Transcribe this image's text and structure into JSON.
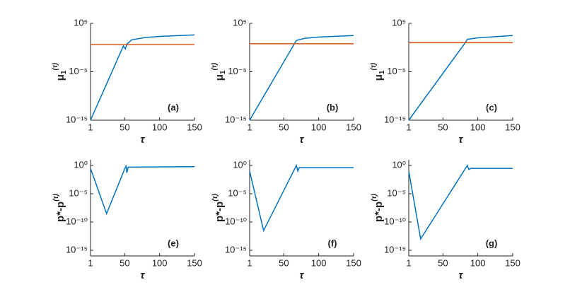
{
  "chart_data": [
    {
      "type": "line",
      "xlim": [
        1,
        150
      ],
      "xticks": [
        1,
        50,
        100,
        150
      ],
      "ylog": true,
      "ylim": [
        1e-15,
        100000.0
      ],
      "yticks": [
        {
          "value": 1e-15,
          "label": "10⁻¹⁵"
        },
        {
          "value": 1e-05,
          "label": "10⁻⁵"
        },
        {
          "value": 100000.0,
          "label": "10⁵"
        }
      ],
      "xlabel": "τ",
      "ylabel": {
        "base": "μ",
        "sub": "1",
        "sup": "(τ)"
      },
      "annotation": "(a)",
      "series": [
        {
          "color": "#0072bd",
          "x": [
            1,
            48,
            51,
            53,
            60,
            80,
            100,
            150
          ],
          "values": [
            1e-15,
            2,
            0.5,
            5,
            40,
            120,
            200,
            400
          ]
        },
        {
          "color": "#d95319",
          "x": [
            1,
            150
          ],
          "values": [
            4,
            4
          ]
        }
      ]
    },
    {
      "type": "line",
      "xlim": [
        1,
        150
      ],
      "xticks": [
        1,
        50,
        100,
        150
      ],
      "ylog": true,
      "ylim": [
        1e-15,
        100000.0
      ],
      "yticks": [
        {
          "value": 1e-15,
          "label": "10⁻¹⁵"
        },
        {
          "value": 1e-05,
          "label": "10⁻⁵"
        },
        {
          "value": 100000.0,
          "label": "10⁵"
        }
      ],
      "xlabel": "τ",
      "ylabel": {
        "base": "μ",
        "sub": "1",
        "sup": "(τ)"
      },
      "annotation": "(b)",
      "series": [
        {
          "color": "#0072bd",
          "x": [
            1,
            68,
            80,
            100,
            150
          ],
          "values": [
            1e-15,
            30,
            80,
            150,
            300
          ]
        },
        {
          "color": "#d95319",
          "x": [
            1,
            150
          ],
          "values": [
            6,
            6
          ]
        }
      ]
    },
    {
      "type": "line",
      "xlim": [
        1,
        150
      ],
      "xticks": [
        1,
        50,
        100,
        150
      ],
      "ylog": true,
      "ylim": [
        1e-15,
        100000.0
      ],
      "yticks": [
        {
          "value": 1e-15,
          "label": "10⁻¹⁵"
        },
        {
          "value": 1e-05,
          "label": "10⁻⁵"
        },
        {
          "value": 100000.0,
          "label": "10⁵"
        }
      ],
      "xlabel": "τ",
      "ylabel": {
        "base": "μ",
        "sub": "1",
        "sup": "(τ)"
      },
      "annotation": "(c)",
      "series": [
        {
          "color": "#0072bd",
          "x": [
            1,
            82,
            85,
            100,
            150
          ],
          "values": [
            1e-15,
            10,
            50,
            100,
            300
          ]
        },
        {
          "color": "#d95319",
          "x": [
            1,
            150
          ],
          "values": [
            10,
            10
          ]
        }
      ]
    },
    {
      "type": "line",
      "xlim": [
        1,
        150
      ],
      "xticks": [
        1,
        50,
        100,
        150
      ],
      "ylog": true,
      "ylim": [
        1e-16,
        10
      ],
      "yticks": [
        {
          "value": 1e-15,
          "label": "10⁻¹⁵"
        },
        {
          "value": 1e-10,
          "label": "10⁻¹⁰"
        },
        {
          "value": 1e-05,
          "label": "10⁻⁵"
        },
        {
          "value": 1,
          "label": "10⁰"
        }
      ],
      "xlabel": "τ",
      "ylabel": {
        "base": "p*-p",
        "sup": "(τ)"
      },
      "annotation": "(e)",
      "series": [
        {
          "color": "#0072bd",
          "x": [
            1,
            24,
            52,
            53,
            55,
            150
          ],
          "values": [
            0.3,
            3e-09,
            1,
            0.05,
            0.5,
            0.6
          ]
        }
      ]
    },
    {
      "type": "line",
      "xlim": [
        1,
        150
      ],
      "xticks": [
        1,
        50,
        100,
        150
      ],
      "ylog": true,
      "ylim": [
        1e-16,
        10
      ],
      "yticks": [
        {
          "value": 1e-15,
          "label": "10⁻¹⁵"
        },
        {
          "value": 1e-10,
          "label": "10⁻¹⁰"
        },
        {
          "value": 1e-05,
          "label": "10⁻⁵"
        },
        {
          "value": 1,
          "label": "10⁰"
        }
      ],
      "xlabel": "τ",
      "ylabel": {
        "base": "p*-p",
        "sup": "(τ)"
      },
      "annotation": "(f)",
      "series": [
        {
          "color": "#0072bd",
          "x": [
            1,
            21,
            68,
            70,
            72,
            150
          ],
          "values": [
            0.1,
            3e-12,
            1,
            0.1,
            0.4,
            0.4
          ]
        }
      ]
    },
    {
      "type": "line",
      "xlim": [
        1,
        150
      ],
      "xticks": [
        1,
        50,
        100,
        150
      ],
      "ylog": true,
      "ylim": [
        1e-16,
        10
      ],
      "yticks": [
        {
          "value": 1e-15,
          "label": "10⁻¹⁵"
        },
        {
          "value": 1e-10,
          "label": "10⁻¹⁰"
        },
        {
          "value": 1e-05,
          "label": "10⁻⁵"
        },
        {
          "value": 1,
          "label": "10⁰"
        }
      ],
      "xlabel": "τ",
      "ylabel": {
        "base": "p*-p",
        "sup": "(τ)"
      },
      "annotation": "(g)",
      "series": [
        {
          "color": "#0072bd",
          "x": [
            1,
            18,
            85,
            87,
            90,
            150
          ],
          "values": [
            0.1,
            1e-13,
            1,
            0.2,
            0.3,
            0.3
          ]
        }
      ]
    }
  ]
}
